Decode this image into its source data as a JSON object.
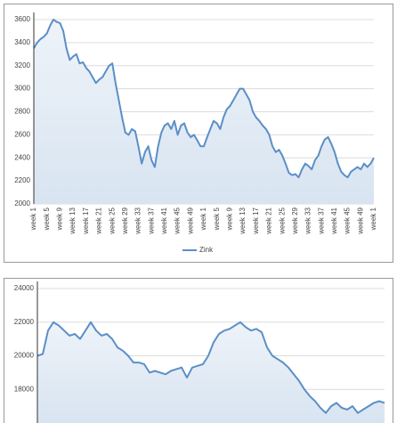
{
  "chart_data": [
    {
      "type": "line",
      "categories": [
        "week 1",
        null,
        null,
        null,
        "week 5",
        null,
        null,
        null,
        "week 9",
        null,
        null,
        null,
        "week 13",
        null,
        null,
        null,
        "week 17",
        null,
        null,
        null,
        "week 21",
        null,
        null,
        null,
        "week 25",
        null,
        null,
        null,
        "week 29",
        null,
        null,
        null,
        "week 33",
        null,
        null,
        null,
        "week 37",
        null,
        null,
        null,
        "week 41",
        null,
        null,
        null,
        "week 45",
        null,
        null,
        null,
        "week 49",
        null,
        null,
        null,
        "week 1",
        null,
        null,
        null,
        "week 5",
        null,
        null,
        null,
        "week 9",
        null,
        null,
        null,
        "week 13",
        null,
        null,
        null,
        "week 17",
        null,
        null,
        null,
        "week 21",
        null,
        null,
        null,
        "week 25",
        null,
        null,
        null,
        "week 29",
        null,
        null,
        null,
        "week 33",
        null,
        null,
        null,
        "week 37",
        null,
        null,
        null,
        "week 41",
        null,
        null,
        null,
        "week 45",
        null,
        null,
        null,
        "week 49",
        null,
        null,
        null,
        "week 1"
      ],
      "series": [
        {
          "name": "Zink",
          "color": "#5b8fc7",
          "values": [
            3350,
            3400,
            3430,
            3450,
            3480,
            3550,
            3600,
            3580,
            3570,
            3500,
            3350,
            3250,
            3280,
            3300,
            3220,
            3230,
            3180,
            3150,
            3100,
            3050,
            3080,
            3100,
            3150,
            3200,
            3220,
            3050,
            2900,
            2750,
            2620,
            2600,
            2650,
            2630,
            2500,
            2350,
            2450,
            2500,
            2380,
            2320,
            2500,
            2620,
            2680,
            2700,
            2650,
            2720,
            2600,
            2680,
            2700,
            2620,
            2580,
            2600,
            2550,
            2500,
            2500,
            2580,
            2650,
            2720,
            2700,
            2650,
            2750,
            2820,
            2850,
            2900,
            2950,
            3000,
            3000,
            2950,
            2900,
            2800,
            2750,
            2720,
            2680,
            2650,
            2600,
            2500,
            2450,
            2470,
            2420,
            2350,
            2270,
            2250,
            2260,
            2230,
            2300,
            2350,
            2330,
            2300,
            2380,
            2420,
            2500,
            2560,
            2580,
            2520,
            2450,
            2350,
            2280,
            2250,
            2230,
            2280,
            2300,
            2320,
            2300,
            2350,
            2320,
            2350,
            2400
          ]
        }
      ],
      "ylim": [
        2000,
        3600
      ],
      "yticks": [
        2000,
        2200,
        2400,
        2600,
        2800,
        3000,
        3200,
        3400,
        3600
      ],
      "grid": true,
      "legend": "bottom"
    },
    {
      "type": "line",
      "series": [
        {
          "color": "#5b8fc7",
          "values": [
            20000,
            20100,
            21500,
            22000,
            21800,
            21500,
            21200,
            21300,
            21000,
            21500,
            22000,
            21500,
            21200,
            21300,
            21000,
            20500,
            20300,
            20000,
            19600,
            19600,
            19500,
            19000,
            19100,
            19000,
            18900,
            19100,
            19200,
            19300,
            18700,
            19300,
            19400,
            19500,
            20000,
            20800,
            21300,
            21500,
            21600,
            21800,
            22000,
            21700,
            21500,
            21600,
            21400,
            20500,
            20000,
            19800,
            19600,
            19300,
            18900,
            18500,
            18000,
            17600,
            17300,
            16900,
            16600,
            17000,
            17200,
            16900,
            16800,
            17000,
            16600,
            16800,
            17000,
            17200,
            17300,
            17200
          ]
        }
      ],
      "ylim": [
        16000,
        24000
      ],
      "yticks": [
        18000,
        20000,
        22000,
        24000
      ],
      "grid": true
    }
  ]
}
